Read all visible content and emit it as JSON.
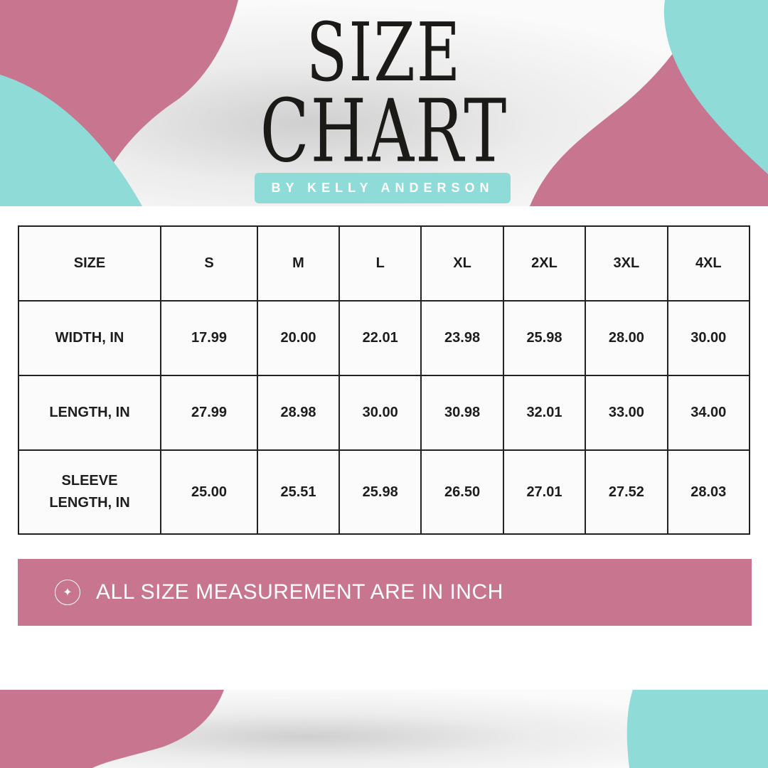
{
  "header": {
    "title_line1": "SIZE",
    "title_line2": "CHART",
    "byline": "BY KELLY ANDERSON"
  },
  "colors": {
    "pink": "#c8768f",
    "teal": "#8fdbd8",
    "text": "#1d1d1d"
  },
  "table": {
    "headers": [
      "SIZE",
      "S",
      "M",
      "L",
      "XL",
      "2XL",
      "3XL",
      "4XL"
    ],
    "rows": [
      {
        "label": "WIDTH, IN",
        "values": [
          "17.99",
          "20.00",
          "22.01",
          "23.98",
          "25.98",
          "28.00",
          "30.00"
        ]
      },
      {
        "label": "LENGTH, IN",
        "values": [
          "27.99",
          "28.98",
          "30.00",
          "30.98",
          "32.01",
          "33.00",
          "34.00"
        ]
      },
      {
        "label_line1": "SLEEVE",
        "label_line2": "LENGTH, IN",
        "values": [
          "25.00",
          "25.51",
          "25.98",
          "26.50",
          "27.01",
          "27.52",
          "28.03"
        ]
      }
    ]
  },
  "note": {
    "icon": "sparkle-icon",
    "text": "ALL SIZE MEASUREMENT ARE IN INCH"
  }
}
